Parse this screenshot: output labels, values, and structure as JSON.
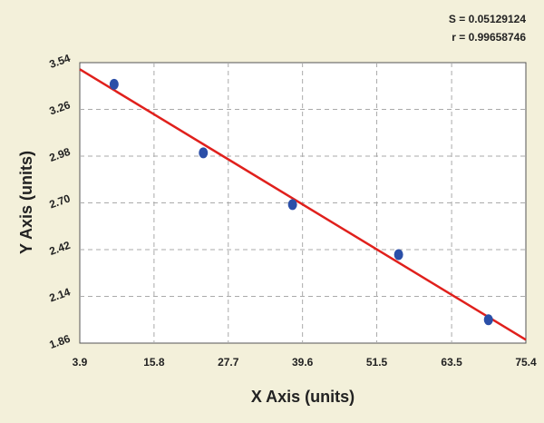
{
  "chart_data": {
    "type": "scatter",
    "annotations": [
      "S = 0.05129124",
      "r = 0.99658746"
    ],
    "xlabel": "X Axis (units)",
    "ylabel": "Y Axis (units)",
    "series": [
      {
        "x": [
          9.4,
          23.7,
          38.0,
          55.0,
          69.4
        ],
        "values": [
          3.41,
          3.0,
          2.69,
          2.39,
          2.0
        ],
        "color": "#2b4fa8"
      }
    ],
    "fit_line": {
      "x": [
        3.9,
        75.4
      ],
      "y": [
        3.5,
        1.88
      ],
      "color": "#e0201c"
    },
    "xlim": [
      3.9,
      75.4
    ],
    "xticks": [
      3.9,
      15.8,
      27.7,
      39.6,
      51.5,
      63.5,
      75.4
    ],
    "ylim": [
      1.86,
      3.54
    ],
    "yticks": [
      1.86,
      2.14,
      2.42,
      {
        "value": 2.7,
        "label": "2.70"
      },
      2.98,
      3.26,
      3.54
    ],
    "grid": true
  }
}
